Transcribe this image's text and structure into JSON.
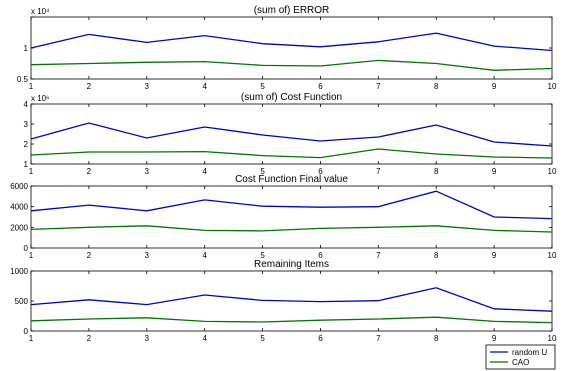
{
  "chart_data": [
    {
      "type": "line",
      "title": "(sum of) ERROR",
      "exponent_label": "x 10⁴",
      "x": [
        1,
        2,
        3,
        4,
        5,
        6,
        7,
        8,
        9,
        10
      ],
      "xticks": [
        "1",
        "2",
        "3",
        "4",
        "5",
        "6",
        "7",
        "8",
        "9",
        "10"
      ],
      "xlim": [
        1,
        10
      ],
      "ylim": [
        0.5,
        1.5
      ],
      "yticks": [
        0.5,
        1,
        1.5
      ],
      "ytick_labels": [
        "0.5",
        "1",
        ""
      ],
      "series": [
        {
          "name": "random U",
          "color": "#0000cc",
          "values": [
            1.0,
            1.22,
            1.09,
            1.2,
            1.07,
            1.02,
            1.1,
            1.24,
            1.03,
            0.96
          ]
        },
        {
          "name": "CAO",
          "color": "#007700",
          "values": [
            0.73,
            0.75,
            0.77,
            0.78,
            0.72,
            0.71,
            0.8,
            0.75,
            0.64,
            0.67
          ]
        }
      ]
    },
    {
      "type": "line",
      "title": "(sum of) Cost Function",
      "exponent_label": "x 10⁶",
      "x": [
        1,
        2,
        3,
        4,
        5,
        6,
        7,
        8,
        9,
        10
      ],
      "xticks": [
        "1",
        "2",
        "3",
        "4",
        "5",
        "6",
        "7",
        "8",
        "9",
        "10"
      ],
      "xlim": [
        1,
        10
      ],
      "ylim": [
        1,
        4
      ],
      "yticks": [
        1,
        2,
        3,
        4
      ],
      "ytick_labels": [
        "1",
        "2",
        "3",
        "4"
      ],
      "series": [
        {
          "name": "random U",
          "color": "#0000cc",
          "values": [
            2.25,
            3.05,
            2.3,
            2.85,
            2.45,
            2.15,
            2.35,
            2.95,
            2.1,
            1.9
          ]
        },
        {
          "name": "CAO",
          "color": "#007700",
          "values": [
            1.45,
            1.6,
            1.6,
            1.62,
            1.42,
            1.32,
            1.75,
            1.5,
            1.35,
            1.3
          ]
        }
      ]
    },
    {
      "type": "line",
      "title": "Cost Function Final value",
      "exponent_label": "",
      "x": [
        1,
        2,
        3,
        4,
        5,
        6,
        7,
        8,
        9,
        10
      ],
      "xticks": [
        "1",
        "2",
        "3",
        "4",
        "5",
        "6",
        "7",
        "8",
        "9",
        "10"
      ],
      "xlim": [
        1,
        10
      ],
      "ylim": [
        0,
        6000
      ],
      "yticks": [
        0,
        2000,
        4000,
        6000
      ],
      "ytick_labels": [
        "0",
        "2000",
        "4000",
        "6000"
      ],
      "series": [
        {
          "name": "random U",
          "color": "#0000cc",
          "values": [
            3600,
            4150,
            3600,
            4650,
            4050,
            3950,
            4000,
            5500,
            3000,
            2850
          ]
        },
        {
          "name": "CAO",
          "color": "#007700",
          "values": [
            1800,
            2000,
            2150,
            1700,
            1650,
            1900,
            2000,
            2150,
            1700,
            1550
          ]
        }
      ]
    },
    {
      "type": "line",
      "title": "Remaining Items",
      "exponent_label": "",
      "x": [
        1,
        2,
        3,
        4,
        5,
        6,
        7,
        8,
        9,
        10
      ],
      "xticks": [
        "1",
        "2",
        "3",
        "4",
        "5",
        "6",
        "7",
        "8",
        "9",
        "10"
      ],
      "xlim": [
        1,
        10
      ],
      "ylim": [
        0,
        1000
      ],
      "yticks": [
        0,
        500,
        1000
      ],
      "ytick_labels": [
        "0",
        "500",
        "1000"
      ],
      "series": [
        {
          "name": "random U",
          "color": "#0000cc",
          "values": [
            440,
            520,
            440,
            600,
            510,
            490,
            505,
            720,
            370,
            330
          ]
        },
        {
          "name": "CAO",
          "color": "#007700",
          "values": [
            170,
            200,
            220,
            160,
            150,
            180,
            200,
            230,
            160,
            140
          ]
        }
      ]
    }
  ],
  "legend": {
    "placement": "bottom-right",
    "entries": [
      {
        "label": "random U",
        "color": "#0000cc"
      },
      {
        "label": "CAO",
        "color": "#007700"
      }
    ]
  }
}
